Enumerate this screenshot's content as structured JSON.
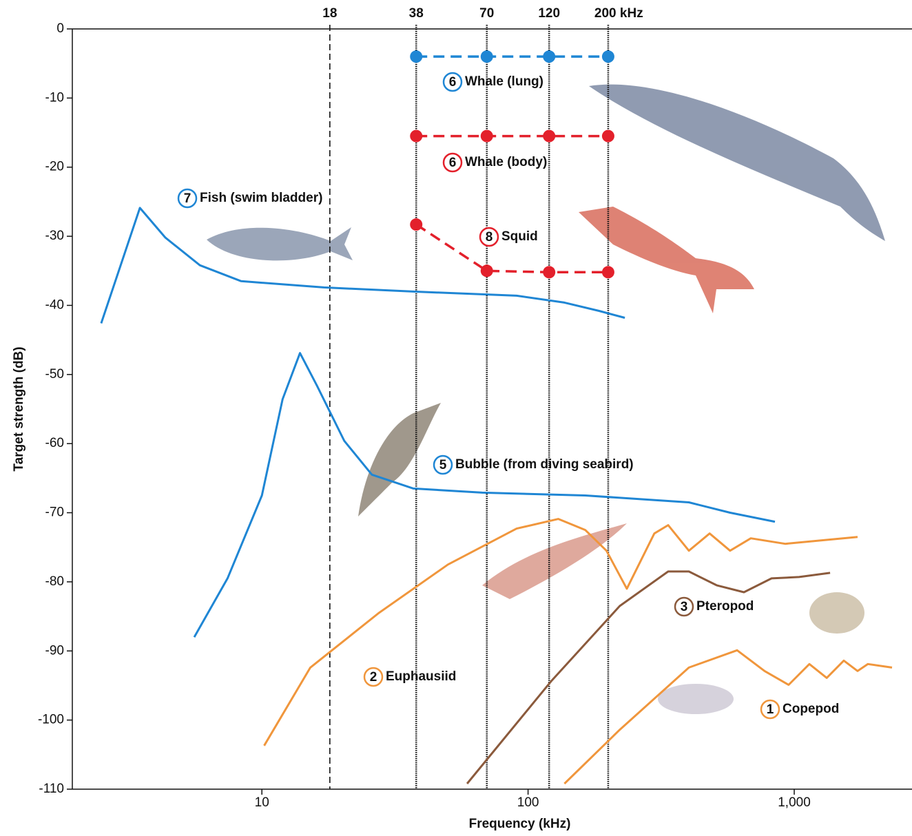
{
  "chart_data": {
    "type": "line",
    "x_label": "Frequency (kHz)",
    "y_label": "Target strength (dB)",
    "xscale": "log",
    "xlim": [
      1.94,
      2770
    ],
    "ylim": [
      -110,
      0
    ],
    "xticks": [
      10,
      100,
      {
        "value": 1000,
        "label": "1,000"
      }
    ],
    "yticks": [
      0,
      -10,
      -20,
      -30,
      -40,
      -50,
      -60,
      -70,
      -80,
      -90,
      -100,
      -110
    ],
    "top_xticks": [
      18,
      38,
      70,
      120,
      {
        "value": 200,
        "label": "200 kHz"
      }
    ],
    "series": [
      {
        "number": "7",
        "name": "Fish (swim bladder)",
        "color": "#1f86d4",
        "line_style": "solid",
        "x": [
          2.49,
          3.48,
          4.34,
          5.85,
          8.36,
          17.1,
          37.1,
          90.6,
          137,
          185,
          231
        ],
        "values": [
          -42.6,
          -25.9,
          -30.2,
          -34.2,
          -36.5,
          -37.4,
          -38.0,
          -38.6,
          -39.6,
          -40.8,
          -41.8
        ]
      },
      {
        "number": "5",
        "name": "Bubble (from diving seabird)",
        "color": "#1f86d4",
        "line_style": "solid",
        "x": [
          5.57,
          7.43,
          10,
          11.96,
          13.9,
          16.1,
          20.4,
          25.9,
          37.1,
          67.3,
          164,
          402,
          574,
          846
        ],
        "values": [
          -88.0,
          -79.5,
          -67.5,
          -53.6,
          -46.9,
          -51.6,
          -59.6,
          -64.5,
          -66.5,
          -67.1,
          -67.5,
          -68.5,
          -70.0,
          -71.3
        ]
      },
      {
        "number": "6",
        "name": "Whale (lung)",
        "color": "#1f86d4",
        "line_style": "dashed",
        "markers": true,
        "x": [
          38,
          70,
          120,
          200
        ],
        "values": [
          -4,
          -4,
          -4,
          -4
        ]
      },
      {
        "number": "6",
        "name": "Whale (body)",
        "color": "#e3202b",
        "line_style": "dashed",
        "markers": true,
        "x": [
          38,
          70,
          120,
          200
        ],
        "values": [
          -15.5,
          -15.5,
          -15.5,
          -15.5
        ]
      },
      {
        "number": "8",
        "name": "Squid",
        "color": "#e3202b",
        "line_style": "dashed",
        "markers": true,
        "x": [
          38,
          70,
          120,
          200
        ],
        "values": [
          -28.3,
          -35,
          -35.2,
          -35.2
        ]
      },
      {
        "number": "2",
        "name": "Euphausiid",
        "color": "#f0963c",
        "line_style": "solid",
        "x": [
          10.2,
          15.2,
          27.5,
          50,
          90.6,
          130,
          164,
          197,
          235,
          298,
          336,
          402,
          481,
          574,
          687,
          925,
          1730
        ],
        "values": [
          -103.7,
          -92.4,
          -84.5,
          -77.5,
          -72.3,
          -70.9,
          -72.5,
          -75.5,
          -81.0,
          -73.0,
          -71.8,
          -75.5,
          -73.0,
          -75.5,
          -73.7,
          -74.5,
          -73.5
        ]
      },
      {
        "number": "3",
        "name": "Pteropod",
        "color": "#8b5a3c",
        "line_style": "solid",
        "x": [
          59,
          122,
          221,
          336,
          402,
          511,
          647,
          822,
          1043,
          1364
        ],
        "values": [
          -109.2,
          -94.4,
          -83.5,
          -78.5,
          -78.5,
          -80.5,
          -81.5,
          -79.5,
          -79.3,
          -78.7
        ]
      },
      {
        "number": "1",
        "name": "Copepod",
        "color": "#f0963c",
        "line_style": "solid",
        "x": [
          137,
          221,
          402,
          610,
          774,
          953,
          1140,
          1325,
          1536,
          1730,
          1892,
          2330
        ],
        "values": [
          -109.2,
          -101.4,
          -92.4,
          -89.9,
          -92.9,
          -94.9,
          -91.9,
          -93.9,
          -91.4,
          -92.9,
          -91.9,
          -92.4
        ]
      }
    ]
  }
}
